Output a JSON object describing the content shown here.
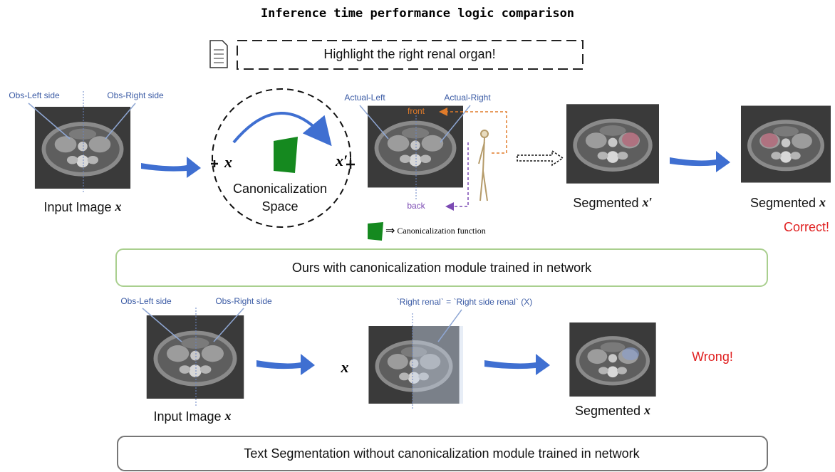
{
  "title": "Inference time performance logic comparison",
  "prompt": "Highlight the right renal organ!",
  "top_row": {
    "input": {
      "obs_left": "Obs-Left side",
      "obs_right": "Obs-Right side",
      "caption": "Input Image",
      "variable": "x"
    },
    "canonicalization": {
      "input_var": "x",
      "output_var": "x′",
      "label_line1": "Canonicalization",
      "label_line2": "Space"
    },
    "canonical_image": {
      "actual_left": "Actual-Left",
      "actual_right": "Actual-Right",
      "front": "front",
      "back": "back"
    },
    "segmented_canonical": {
      "caption": "Segmented",
      "variable": "x′"
    },
    "segmented": {
      "caption": "Segmented",
      "variable": "x",
      "verdict": "Correct!"
    },
    "legend": {
      "arrow": "⇒",
      "label": "Canonicalization function"
    }
  },
  "ours_box": "Ours with canonicalization module trained in network",
  "bottom_row": {
    "input": {
      "obs_left": "Obs-Left side",
      "obs_right": "Obs-Right side",
      "caption": "Input Image",
      "variable": "x"
    },
    "text_image": {
      "variable": "x",
      "note": "`Right renal` = `Right side renal` (X)"
    },
    "segmented": {
      "caption": "Segmented",
      "variable": "x",
      "verdict": "Wrong!"
    }
  },
  "baseline_box": "Text Segmentation without canonicalization module trained in network"
}
